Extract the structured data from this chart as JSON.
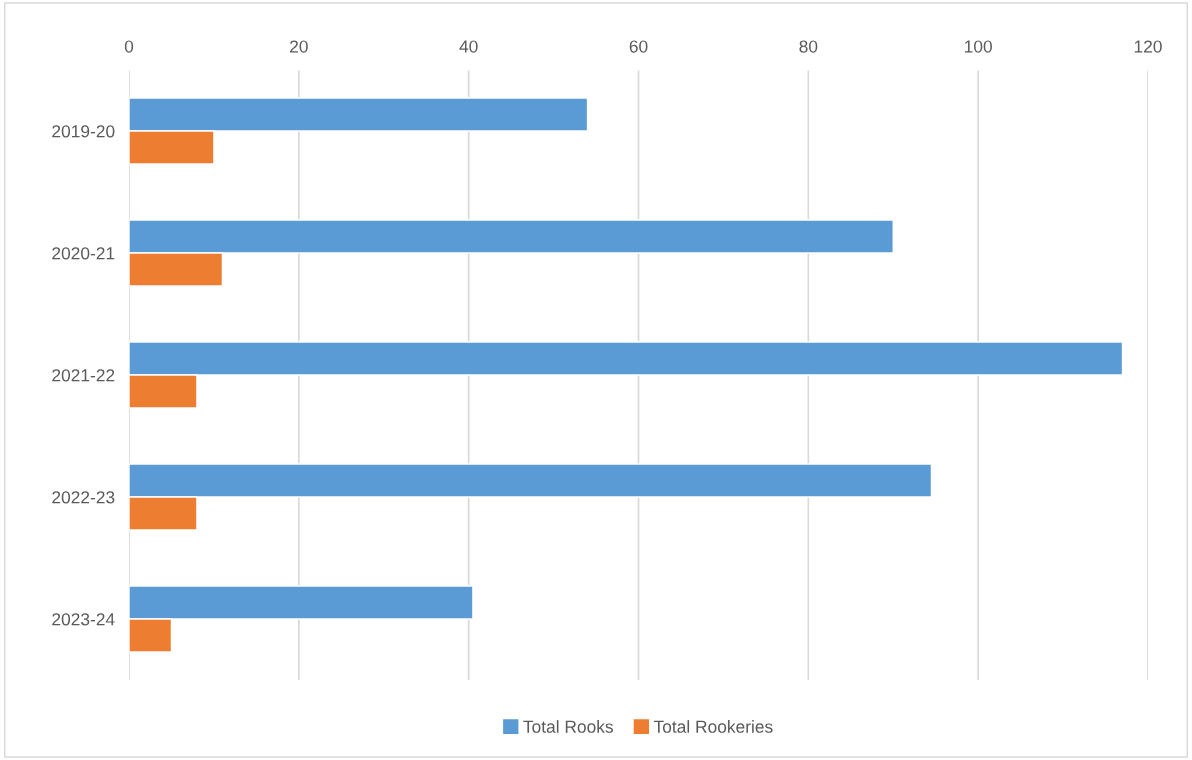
{
  "chart_data": {
    "type": "bar",
    "orientation": "horizontal",
    "categories": [
      "2019-20",
      "2020-21",
      "2021-22",
      "2022-23",
      "2023-24"
    ],
    "series": [
      {
        "name": "Total Rooks",
        "color": "#5b9bd5",
        "values": [
          54,
          90,
          117,
          94.5,
          40.5
        ]
      },
      {
        "name": "Total Rookeries",
        "color": "#ed7d31",
        "values": [
          10,
          11,
          8,
          8,
          5
        ]
      }
    ],
    "xlim": [
      0,
      120
    ],
    "xticks": [
      0,
      20,
      40,
      60,
      80,
      100,
      120
    ],
    "grid": "x",
    "legend": "bottom"
  }
}
